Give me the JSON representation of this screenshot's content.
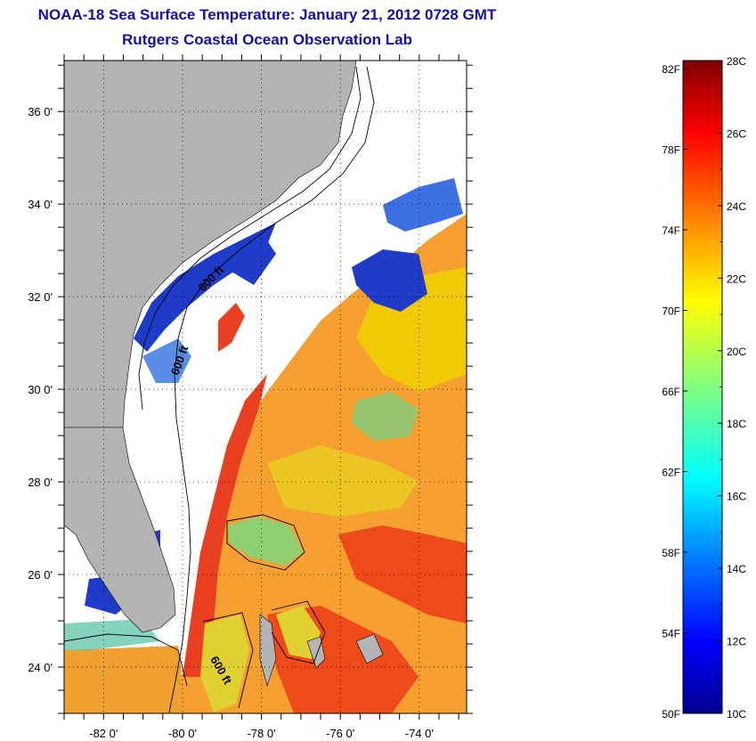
{
  "header": {
    "title": "NOAA-18 Sea Surface Temperature:  January 21, 2012 0728 GMT",
    "subtitle": "Rutgers Coastal Ocean Observation Lab"
  },
  "map": {
    "lon_ticks": [
      "-82 0'",
      "-80 0'",
      "-78 0'",
      "-76 0'",
      "-74 0'"
    ],
    "lat_ticks": [
      "36 0'",
      "34 0'",
      "32 0'",
      "30 0'",
      "28 0'",
      "26 0'",
      "24 0'"
    ],
    "lon_range": [
      -83.0,
      -72.8
    ],
    "lat_range": [
      23.0,
      37.1
    ],
    "isobath_labels": [
      "600 ft",
      "600 ft",
      "600 ft"
    ],
    "grid": "dotted"
  },
  "colorbar": {
    "celsius_labels": [
      "28C",
      "26C",
      "24C",
      "22C",
      "20C",
      "18C",
      "16C",
      "14C",
      "12C",
      "10C"
    ],
    "fahrenheit_labels": [
      "82F",
      "78F",
      "74F",
      "70F",
      "66F",
      "62F",
      "58F",
      "54F",
      "50F"
    ],
    "range_c": [
      10,
      28
    ],
    "colormap": "jet",
    "colors": [
      "#00008f",
      "#0000ff",
      "#0080ff",
      "#00ffff",
      "#80ff80",
      "#ffff00",
      "#ff8000",
      "#ff0000",
      "#800000"
    ]
  },
  "colors": {
    "title": "#1010a8",
    "land": "#b4b4b4",
    "no_data": "#ffffff",
    "sst_warm": "#f5a030",
    "sst_hot": "#ee4a1a",
    "sst_cool": "#1e3cc8"
  }
}
